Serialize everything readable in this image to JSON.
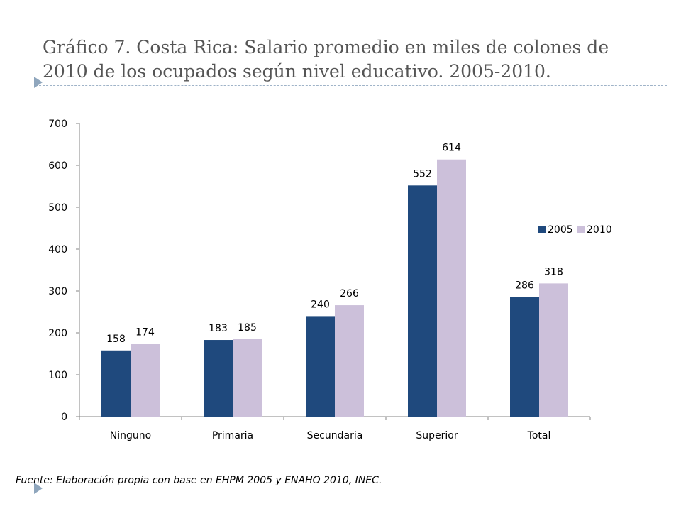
{
  "title": "Gráfico 7. Costa Rica: Salario promedio en miles de colones  de 2010 de los ocupados según nivel educativo. 2005-2010.",
  "source": "Fuente: Elaboración propia con base en EHPM 2005 y ENAHO 2010, INEC.",
  "colors": {
    "series_2005": "#1f497d",
    "series_2010": "#ccc0da",
    "axis": "#868686"
  },
  "chart_data": {
    "type": "bar",
    "categories": [
      "Ninguno",
      "Primaria",
      "Secundaria",
      "Superior",
      "Total"
    ],
    "series": [
      {
        "name": "2005",
        "values": [
          158,
          183,
          240,
          552,
          286
        ]
      },
      {
        "name": "2010",
        "values": [
          174,
          185,
          266,
          614,
          318
        ]
      }
    ],
    "ylim": [
      0,
      700
    ],
    "yticks": [
      0,
      100,
      200,
      300,
      400,
      500,
      600,
      700
    ],
    "xlabel": "",
    "ylabel": "",
    "grid": false,
    "legend_position": "right",
    "data_labels": true
  }
}
